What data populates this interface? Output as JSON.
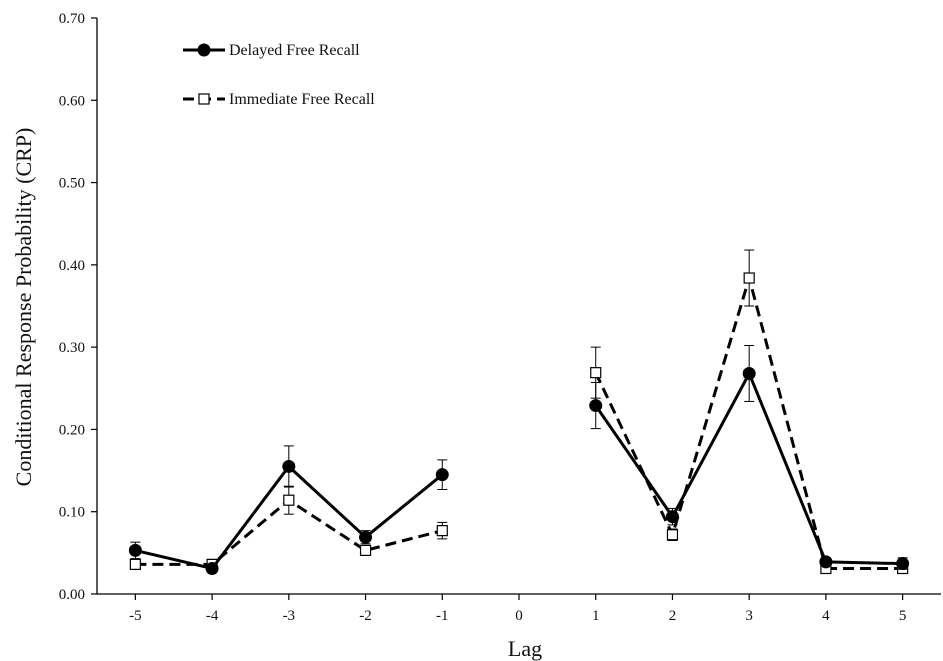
{
  "chart_data": {
    "type": "line",
    "title": "",
    "xlabel": "Lag",
    "ylabel": "Conditional Response Probability (CRP)",
    "x": [
      -5,
      -4,
      -3,
      -2,
      -1,
      0,
      1,
      2,
      3,
      4,
      5
    ],
    "x_tick_labels": [
      "-5",
      "-4",
      "-3",
      "-2",
      "-1",
      "0",
      "1",
      "2",
      "3",
      "4",
      "5"
    ],
    "xlim": [
      -5.5,
      5.5
    ],
    "ylim": [
      0,
      0.7
    ],
    "y_ticks": [
      0,
      0.1,
      0.2,
      0.3,
      0.4,
      0.5,
      0.6,
      0.7
    ],
    "y_tick_labels": [
      "0.00",
      "0.10",
      "0.20",
      "0.30",
      "0.40",
      "0.50",
      "0.60",
      "0.70"
    ],
    "grid": false,
    "legend_position": "top-left",
    "series": [
      {
        "name": "Delayed Free Recall",
        "style": "solid",
        "marker": "filled-circle",
        "color": "#000000",
        "values": [
          0.053,
          0.031,
          0.155,
          0.069,
          0.145,
          null,
          0.229,
          0.094,
          0.268,
          0.039,
          0.037
        ],
        "errors": [
          0.01,
          0.005,
          0.025,
          0.008,
          0.018,
          null,
          0.028,
          0.01,
          0.034,
          0.005,
          0.007
        ]
      },
      {
        "name": "Immediate Free Recall",
        "style": "dashed",
        "marker": "open-square",
        "color": "#000000",
        "values": [
          0.036,
          0.036,
          0.114,
          0.053,
          0.077,
          null,
          0.269,
          0.072,
          0.384,
          0.031,
          0.031
        ],
        "errors": [
          0.005,
          0.006,
          0.017,
          0.006,
          0.01,
          null,
          0.031,
          0.007,
          0.034,
          0.004,
          0.005
        ]
      }
    ]
  }
}
